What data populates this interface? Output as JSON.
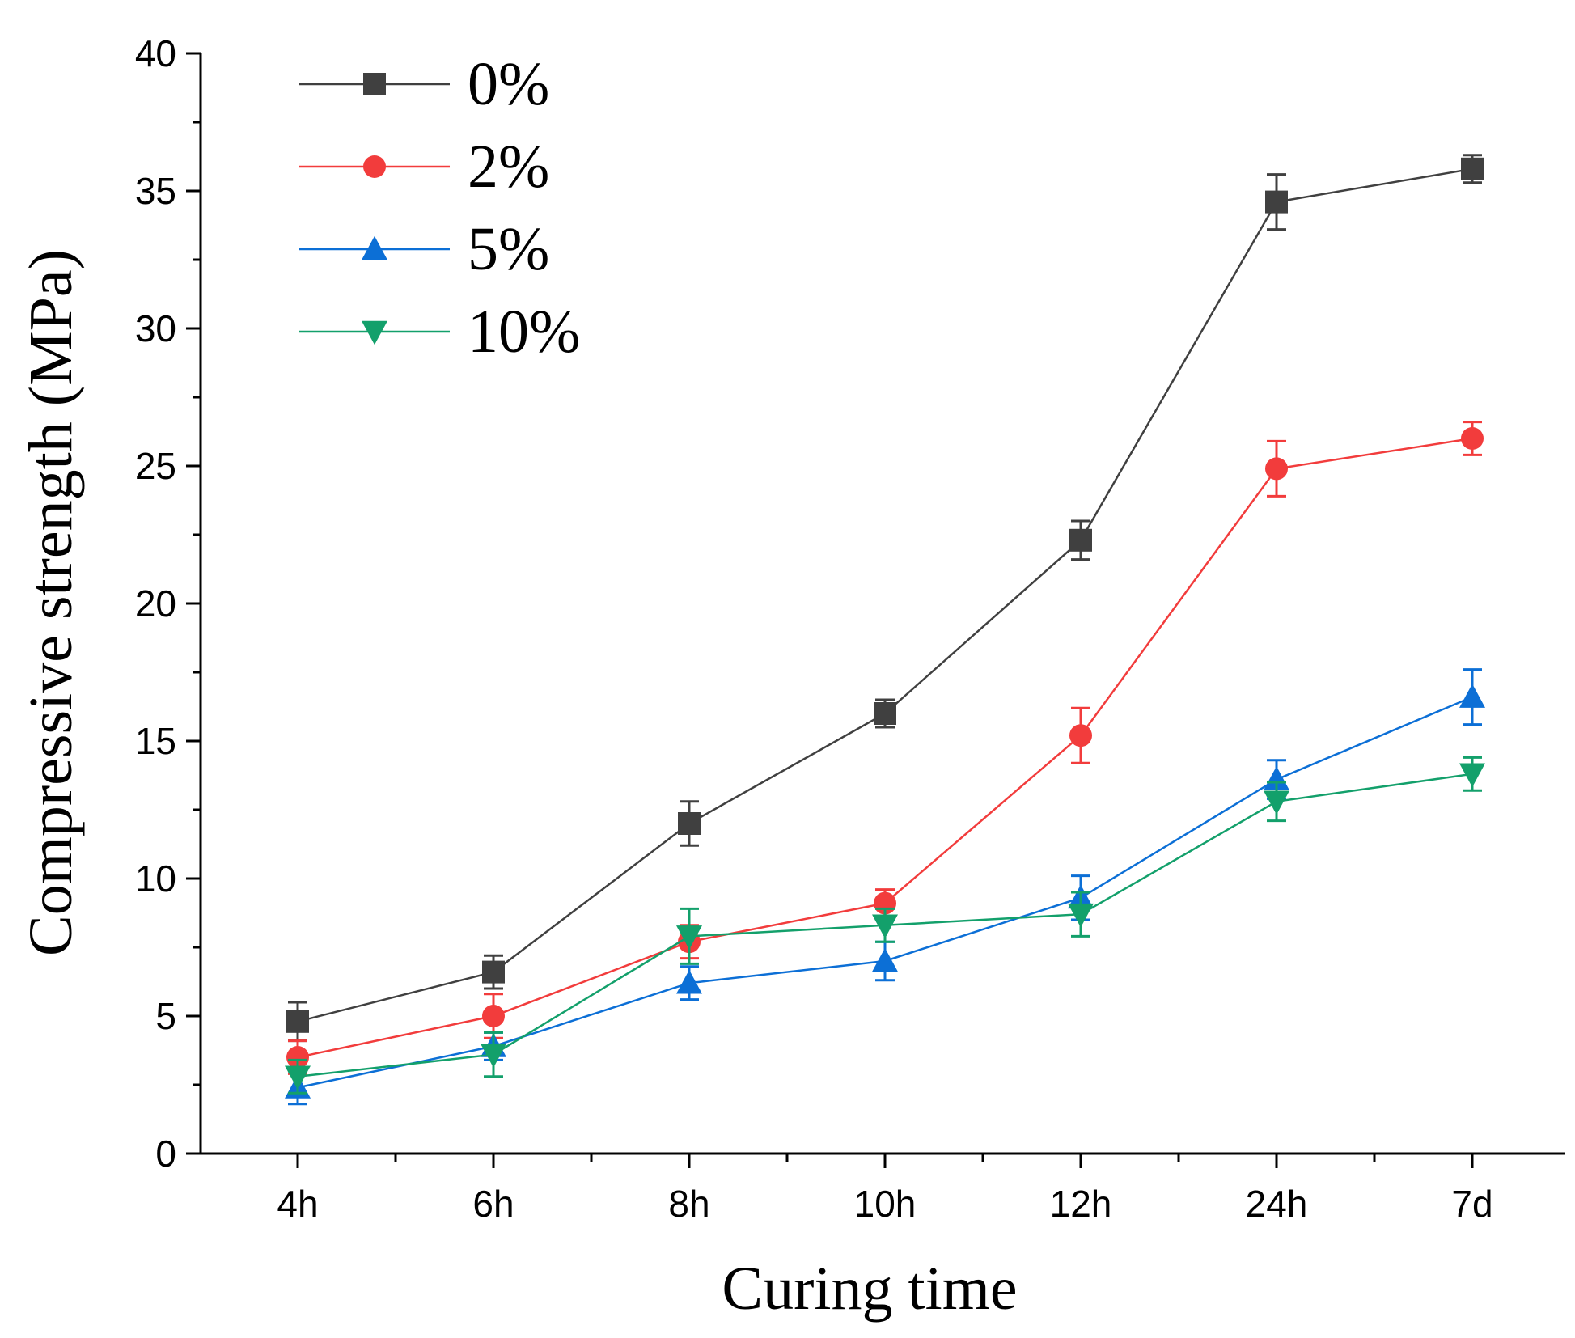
{
  "chart_data": {
    "type": "line",
    "title": "",
    "xlabel": "Curing time",
    "ylabel": "Compressive strength (MPa)",
    "categories": [
      "4h",
      "6h",
      "8h",
      "10h",
      "12h",
      "24h",
      "7d"
    ],
    "ylim": [
      0,
      40
    ],
    "yticks": [
      0,
      5,
      10,
      15,
      20,
      25,
      30,
      35,
      40
    ],
    "legend_position": "top-left",
    "grid": false,
    "series": [
      {
        "name": "0%",
        "marker": "square",
        "color": "#404040",
        "line_color": "#404040",
        "values": [
          4.8,
          6.6,
          12.0,
          16.0,
          22.3,
          34.6,
          35.8
        ],
        "errors": [
          0.7,
          0.6,
          0.8,
          0.5,
          0.7,
          1.0,
          0.5
        ]
      },
      {
        "name": "2%",
        "marker": "circle",
        "color": "#f23c3c",
        "line_color": "#f23c3c",
        "values": [
          3.5,
          5.0,
          7.7,
          9.1,
          15.2,
          24.9,
          26.0
        ],
        "errors": [
          0.6,
          0.8,
          0.6,
          0.5,
          1.0,
          1.0,
          0.6
        ]
      },
      {
        "name": "5%",
        "marker": "triangle-up",
        "color": "#0c6fd6",
        "line_color": "#0c6fd6",
        "values": [
          2.4,
          3.9,
          6.2,
          7.0,
          9.3,
          13.6,
          16.6
        ],
        "errors": [
          0.6,
          0.5,
          0.6,
          0.7,
          0.8,
          0.7,
          1.0
        ]
      },
      {
        "name": "10%",
        "marker": "triangle-down",
        "color": "#13a06b",
        "line_color": "#13a06b",
        "values": [
          2.8,
          3.6,
          7.9,
          8.3,
          8.7,
          12.8,
          13.8
        ],
        "errors": [
          0.6,
          0.8,
          1.0,
          0.6,
          0.8,
          0.7,
          0.6
        ]
      }
    ]
  }
}
